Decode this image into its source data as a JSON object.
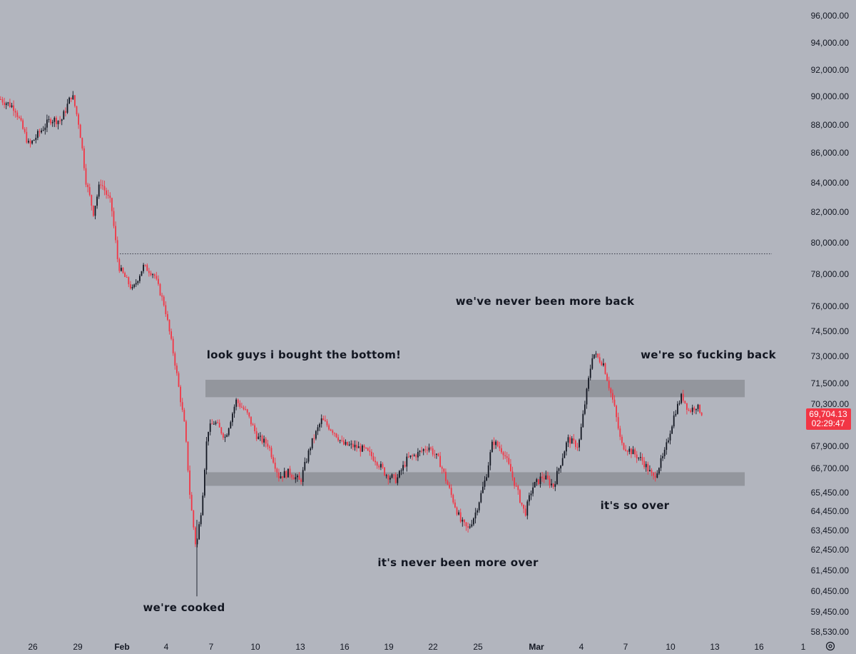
{
  "chart_data": {
    "type": "candlestick",
    "y_ticks": [
      "96,000.00",
      "94,000.00",
      "92,000.00",
      "90,000.00",
      "88,000.00",
      "86,000.00",
      "84,000.00",
      "82,000.00",
      "80,000.00",
      "78,000.00",
      "76,000.00",
      "74,500.00",
      "73,000.00",
      "71,500.00",
      "70,300.00",
      "67,900.00",
      "66,700.00",
      "65,450.00",
      "64,450.00",
      "63,450.00",
      "62,450.00",
      "61,450.00",
      "60,450.00",
      "59,450.00",
      "58,530.00"
    ],
    "x_ticks": [
      "26",
      "29",
      "Feb",
      "4",
      "7",
      "10",
      "13",
      "16",
      "19",
      "22",
      "25",
      "Mar",
      "4",
      "7",
      "10",
      "13",
      "16",
      "1"
    ],
    "x_month_ticks": [
      "Feb",
      "Mar"
    ],
    "current_price": "69,704.13",
    "countdown": "02:29:47",
    "reference_level": 79300,
    "zones": [
      {
        "from": 70700,
        "to": 71700
      },
      {
        "from": 65800,
        "to": 66500
      }
    ],
    "annotations": [
      "we've never been more back",
      "look guys i bought the bottom!",
      "we're so fucking back",
      "it's so over",
      "it's never been more over",
      "we're cooked"
    ],
    "path": [
      [
        0,
        89800
      ],
      [
        20,
        89200
      ],
      [
        40,
        86500
      ],
      [
        55,
        87500
      ],
      [
        70,
        88400
      ],
      [
        85,
        88300
      ],
      [
        100,
        90200
      ],
      [
        110,
        88000
      ],
      [
        120,
        84000
      ],
      [
        130,
        82000
      ],
      [
        140,
        84100
      ],
      [
        155,
        82500
      ],
      [
        165,
        78500
      ],
      [
        185,
        77000
      ],
      [
        200,
        78500
      ],
      [
        215,
        78000
      ],
      [
        230,
        76000
      ],
      [
        245,
        72500
      ],
      [
        258,
        69000
      ],
      [
        266,
        65000
      ],
      [
        274,
        62500
      ],
      [
        282,
        64800
      ],
      [
        290,
        68800
      ],
      [
        300,
        69300
      ],
      [
        315,
        68400
      ],
      [
        330,
        70500
      ],
      [
        345,
        69800
      ],
      [
        360,
        68400
      ],
      [
        375,
        68000
      ],
      [
        390,
        66300
      ],
      [
        405,
        66500
      ],
      [
        420,
        66000
      ],
      [
        435,
        68000
      ],
      [
        450,
        69400
      ],
      [
        468,
        68700
      ],
      [
        480,
        68000
      ],
      [
        495,
        67900
      ],
      [
        510,
        67700
      ],
      [
        525,
        67200
      ],
      [
        540,
        66400
      ],
      [
        555,
        66100
      ],
      [
        570,
        67200
      ],
      [
        585,
        67500
      ],
      [
        600,
        67900
      ],
      [
        615,
        67100
      ],
      [
        630,
        65500
      ],
      [
        645,
        63900
      ],
      [
        655,
        63500
      ],
      [
        665,
        64300
      ],
      [
        680,
        66200
      ],
      [
        690,
        68200
      ],
      [
        705,
        67600
      ],
      [
        720,
        66000
      ],
      [
        735,
        64300
      ],
      [
        745,
        65700
      ],
      [
        760,
        66300
      ],
      [
        775,
        65800
      ],
      [
        785,
        67000
      ],
      [
        795,
        68300
      ],
      [
        810,
        67900
      ],
      [
        820,
        70600
      ],
      [
        830,
        73200
      ],
      [
        845,
        72600
      ],
      [
        860,
        70200
      ],
      [
        870,
        68000
      ],
      [
        885,
        67600
      ],
      [
        900,
        67100
      ],
      [
        915,
        66200
      ],
      [
        930,
        67400
      ],
      [
        945,
        69800
      ],
      [
        955,
        70800
      ],
      [
        965,
        69900
      ],
      [
        975,
        70200
      ],
      [
        985,
        69700
      ]
    ]
  }
}
